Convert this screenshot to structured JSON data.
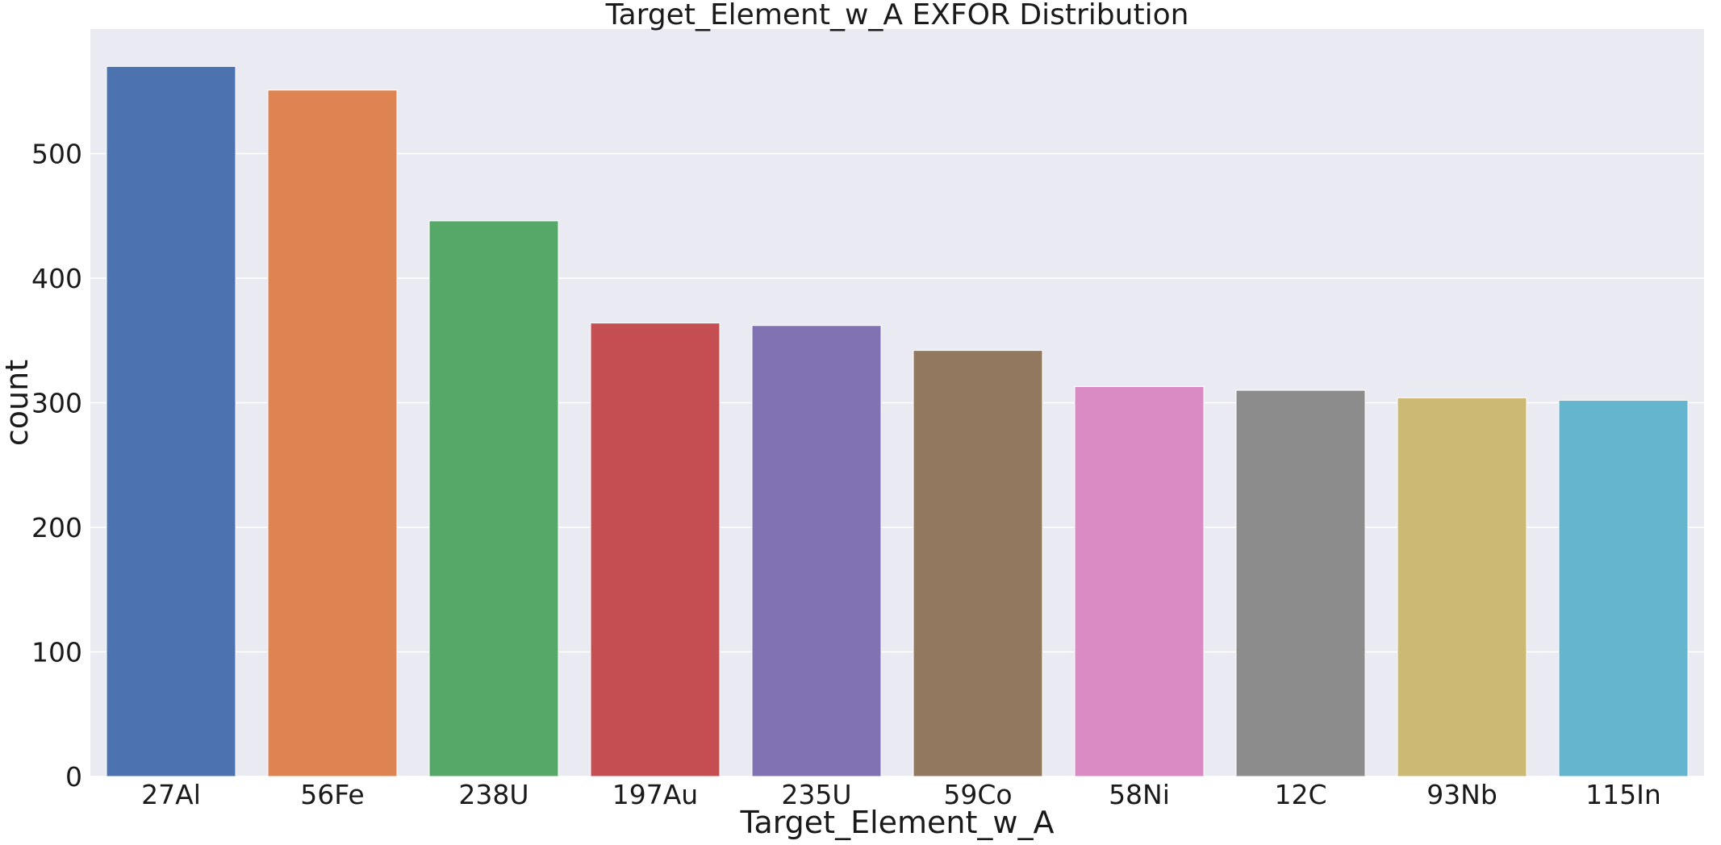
{
  "chart_data": {
    "type": "bar",
    "title": "Target_Element_w_A EXFOR Distribution",
    "xlabel": "Target_Element_w_A",
    "ylabel": "count",
    "categories": [
      "27Al",
      "56Fe",
      "238U",
      "197Au",
      "235U",
      "59Co",
      "58Ni",
      "12C",
      "93Nb",
      "115In"
    ],
    "values": [
      570,
      551,
      446,
      364,
      362,
      342,
      313,
      310,
      304,
      302
    ],
    "ylim": [
      0,
      600
    ],
    "yticks": [
      0,
      100,
      200,
      300,
      400,
      500
    ],
    "grid": true,
    "background": "#eaeaf2",
    "colors": [
      "#4c72b0",
      "#dd8452",
      "#55a868",
      "#c44e52",
      "#8172b3",
      "#937860",
      "#da8bc3",
      "#8c8c8c",
      "#ccb974",
      "#64b5cd"
    ]
  }
}
